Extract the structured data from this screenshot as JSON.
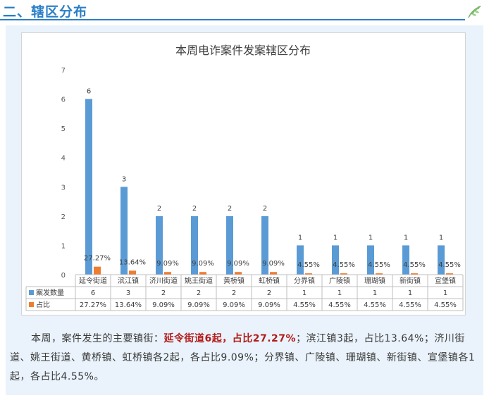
{
  "header": {
    "title": "二、辖区分布"
  },
  "summary": {
    "part1": "本周，案件发生的主要镇街：",
    "highlight": "延令街道6起，占比27.27%",
    "part2": "；滨江镇3起，占比13.64%；济川街道、姚王街道、黄桥镇、虹桥镇各2起，各占比9.09%；分界镇、广陵镇、珊瑚镇、新街镇、宣堡镇各1起，各占比4.55%。"
  },
  "chart_data": {
    "type": "bar",
    "title": "本周电诈案件发案辖区分布",
    "categories": [
      "延令街道",
      "滨江镇",
      "济川街道",
      "姚王街道",
      "黄桥镇",
      "虹桥镇",
      "分界镇",
      "广陵镇",
      "珊瑚镇",
      "新街镇",
      "宣堡镇"
    ],
    "series": [
      {
        "name": "案发数量",
        "values": [
          6,
          3,
          2,
          2,
          2,
          2,
          1,
          1,
          1,
          1,
          1
        ],
        "labels": [
          "6",
          "3",
          "2",
          "2",
          "2",
          "2",
          "1",
          "1",
          "1",
          "1",
          "1"
        ],
        "color": "#5b9bd5"
      },
      {
        "name": "占比",
        "values": [
          0.2727,
          0.1364,
          0.0909,
          0.0909,
          0.0909,
          0.0909,
          0.0455,
          0.0455,
          0.0455,
          0.0455,
          0.0455
        ],
        "labels": [
          "27.27%",
          "13.64%",
          "9.09%",
          "9.09%",
          "9.09%",
          "9.09%",
          "4.55%",
          "4.55%",
          "4.55%",
          "4.55%",
          "4.55%"
        ],
        "color": "#ed7d31"
      }
    ],
    "yticks": [
      "0",
      "1",
      "2",
      "3",
      "4",
      "5",
      "6",
      "7"
    ],
    "ylim": [
      0,
      7
    ],
    "grid": false,
    "legend": "data-table"
  }
}
